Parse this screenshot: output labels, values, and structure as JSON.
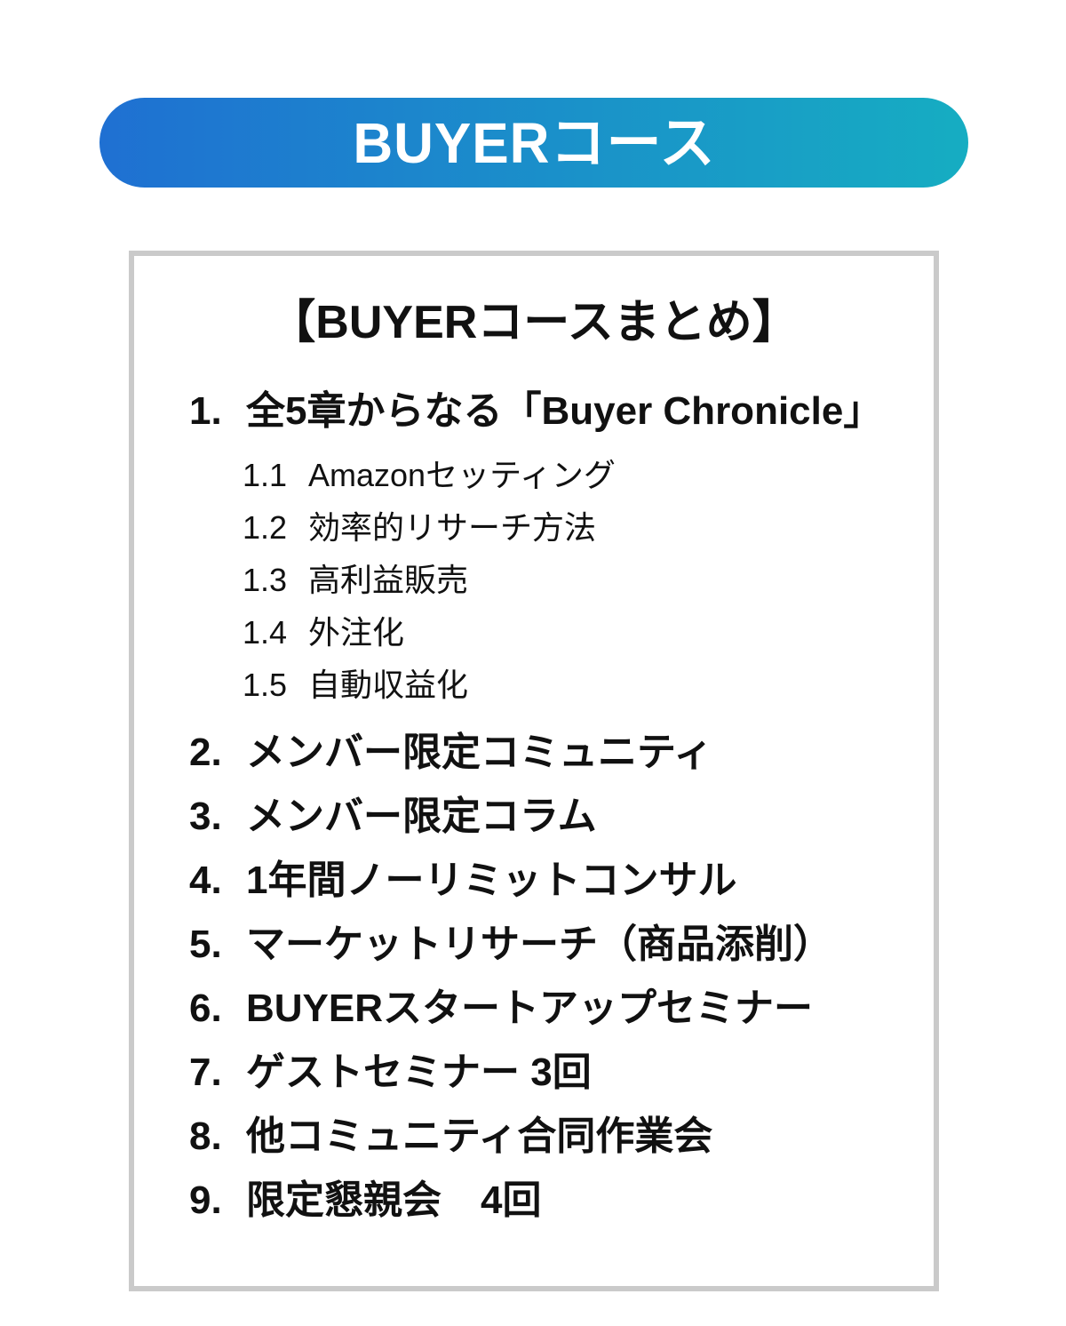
{
  "header": {
    "label": "BUYERコース",
    "gradient_start": "#1f70d2",
    "gradient_end": "#16adc2",
    "text_color": "#ffffff"
  },
  "summary_box": {
    "title": "【BUYERコースまとめ】",
    "items": [
      {
        "number": "1.",
        "label": "全5章からなる「Buyer Chronicle」",
        "children": [
          {
            "number": "1.1",
            "label": "Amazonセッティング"
          },
          {
            "number": "1.2",
            "label": "効率的リサーチ方法"
          },
          {
            "number": "1.3",
            "label": "高利益販売"
          },
          {
            "number": "1.4",
            "label": "外注化"
          },
          {
            "number": "1.5",
            "label": "自動収益化"
          }
        ]
      },
      {
        "number": "2.",
        "label": "メンバー限定コミュニティ"
      },
      {
        "number": "3.",
        "label": "メンバー限定コラム"
      },
      {
        "number": "4.",
        "label": "1年間ノーリミットコンサル"
      },
      {
        "number": "5.",
        "label": "マーケットリサーチ（商品添削）"
      },
      {
        "number": "6.",
        "label": "BUYERスタートアップセミナー"
      },
      {
        "number": "7.",
        "label": "ゲストセミナー 3回"
      },
      {
        "number": "8.",
        "label": "他コミュニティ合同作業会"
      },
      {
        "number": "9.",
        "label": "限定懇親会　4回"
      }
    ]
  },
  "colors": {
    "background": "#ffffff",
    "text": "#111111",
    "box_border": "#cacaca"
  }
}
